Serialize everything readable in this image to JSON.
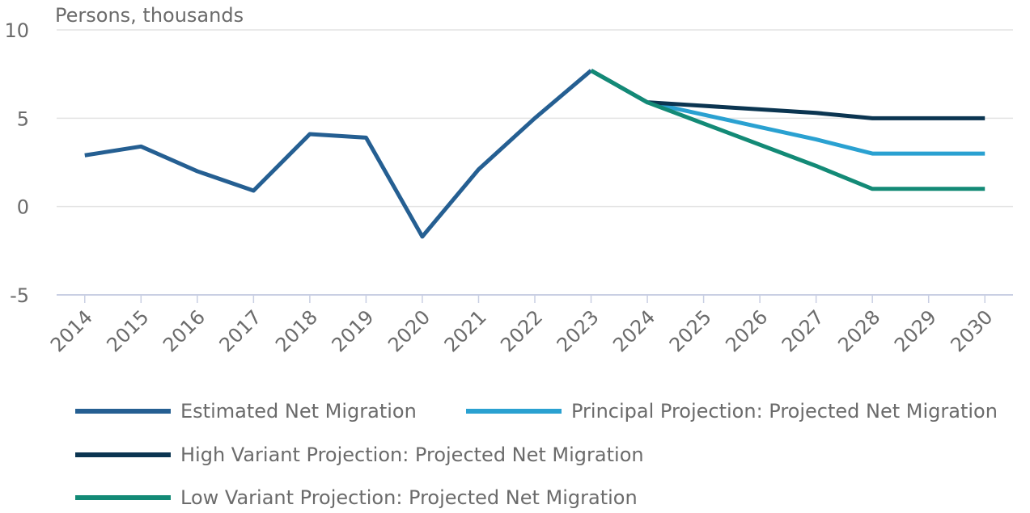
{
  "chart_data": {
    "type": "line",
    "y_label": "Persons, thousands",
    "categories": [
      "2014",
      "2015",
      "2016",
      "2017",
      "2018",
      "2019",
      "2020",
      "2021",
      "2022",
      "2023",
      "2024",
      "2025",
      "2026",
      "2027",
      "2028",
      "2029",
      "2030"
    ],
    "series": [
      {
        "name": "Estimated Net Migration",
        "color": "#255f92",
        "values": [
          2.9,
          3.4,
          2.0,
          0.9,
          4.1,
          3.9,
          -1.7,
          2.1,
          5.0,
          7.7,
          null,
          null,
          null,
          null,
          null,
          null,
          null
        ]
      },
      {
        "name": "Principal Projection: Projected Net Migration",
        "color": "#2aa1d1",
        "values": [
          null,
          null,
          null,
          null,
          null,
          null,
          null,
          null,
          null,
          7.7,
          5.9,
          5.2,
          4.5,
          3.8,
          3.0,
          3.0,
          3.0
        ]
      },
      {
        "name": "High Variant Projection: Projected Net Migration",
        "color": "#0b3551",
        "values": [
          null,
          null,
          null,
          null,
          null,
          null,
          null,
          null,
          null,
          7.7,
          5.9,
          5.7,
          5.5,
          5.3,
          5.0,
          5.0,
          5.0
        ]
      },
      {
        "name": "Low Variant Projection: Projected Net Migration",
        "color": "#138a76",
        "values": [
          null,
          null,
          null,
          null,
          null,
          null,
          null,
          null,
          null,
          7.7,
          5.9,
          4.7,
          3.5,
          2.3,
          1.0,
          1.0,
          1.0
        ]
      }
    ],
    "ylim": [
      -5,
      10
    ],
    "yticks": [
      -5,
      0,
      5,
      10
    ],
    "grid": true
  }
}
